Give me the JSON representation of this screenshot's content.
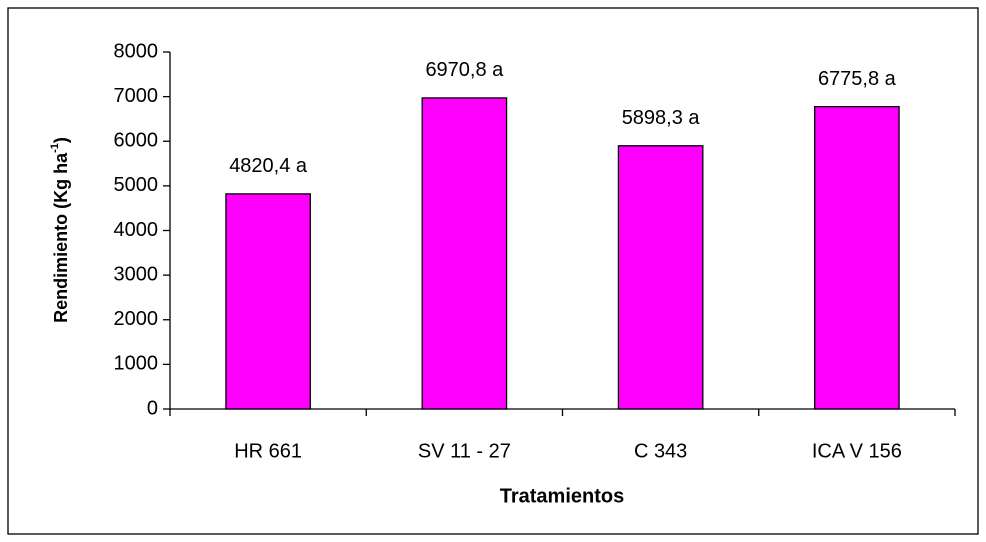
{
  "chart_data": {
    "type": "bar",
    "ylabel": [
      "Rendimiento (Kg ha",
      "-1",
      ")"
    ],
    "xlabel": "Tratamientos",
    "categories": [
      "HR 661",
      "SV 11 - 27",
      "C 343",
      "ICA V 156"
    ],
    "values": [
      4820.4,
      6970.8,
      5898.3,
      6775.8
    ],
    "value_labels": [
      "4820,4 a",
      "6970,8 a",
      "5898,3 a",
      "6775,8 a"
    ],
    "color": "#ff00ff",
    "ylim": [
      0,
      8000
    ],
    "yticks": [
      0,
      1000,
      2000,
      3000,
      4000,
      5000,
      6000,
      7000,
      8000
    ],
    "grid": false
  }
}
